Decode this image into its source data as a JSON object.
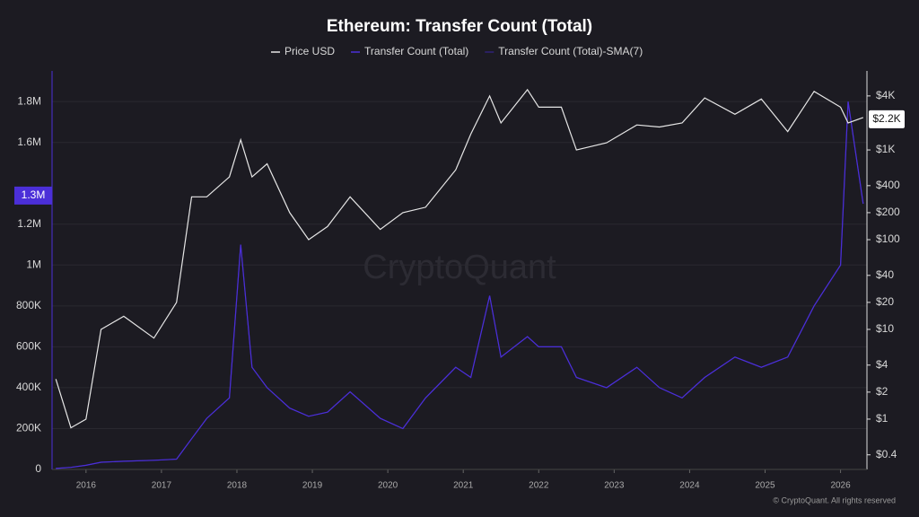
{
  "chart_data": {
    "type": "line",
    "title": "Ethereum: Transfer Count (Total)",
    "watermark": "CryptoQuant",
    "footer": "© CryptoQuant. All rights reserved",
    "x": [
      2015.6,
      2015.8,
      2016.0,
      2016.2,
      2016.5,
      2016.9,
      2017.2,
      2017.4,
      2017.6,
      2017.9,
      2018.05,
      2018.2,
      2018.4,
      2018.7,
      2018.95,
      2019.2,
      2019.5,
      2019.9,
      2020.2,
      2020.5,
      2020.9,
      2021.1,
      2021.35,
      2021.5,
      2021.85,
      2022.0,
      2022.3,
      2022.5,
      2022.9,
      2023.3,
      2023.6,
      2023.9,
      2024.2,
      2024.6,
      2024.95,
      2025.3,
      2025.65,
      2026.0,
      2026.1,
      2026.3
    ],
    "series": [
      {
        "name": "Price USD",
        "color": "#e6e6e6",
        "axis": "y2",
        "values": [
          2.8,
          0.8,
          1,
          10,
          14,
          8,
          20,
          300,
          300,
          500,
          1300,
          500,
          700,
          200,
          100,
          140,
          300,
          130,
          200,
          230,
          600,
          1500,
          4000,
          2000,
          4700,
          3000,
          3000,
          1000,
          1200,
          1900,
          1800,
          2000,
          3800,
          2500,
          3700,
          1600,
          4500,
          3000,
          2000,
          2300
        ]
      },
      {
        "name": "Transfer Count (Total)",
        "color": "#4b2fd8",
        "values": [
          5000,
          10000,
          20000,
          35000,
          40000,
          45000,
          50000,
          150000,
          250000,
          350000,
          1100000,
          500000,
          400000,
          300000,
          260000,
          280000,
          380000,
          250000,
          200000,
          350000,
          500000,
          450000,
          850000,
          550000,
          650000,
          600000,
          600000,
          450000,
          400000,
          500000,
          400000,
          350000,
          450000,
          550000,
          500000,
          550000,
          800000,
          1000000,
          1800000,
          1300000
        ]
      },
      {
        "name": "Transfer Count (Total)-SMA(7)",
        "color": "#2e2378",
        "values": [
          5000,
          10000,
          20000,
          35000,
          40000,
          45000,
          50000,
          150000,
          250000,
          350000,
          1100000,
          500000,
          400000,
          300000,
          260000,
          280000,
          380000,
          250000,
          200000,
          350000,
          500000,
          450000,
          850000,
          550000,
          650000,
          600000,
          600000,
          450000,
          400000,
          500000,
          400000,
          350000,
          450000,
          550000,
          500000,
          550000,
          800000,
          1000000,
          1800000,
          1300000
        ]
      }
    ],
    "xlim": [
      2015.55,
      2026.35
    ],
    "xticks": [
      2016,
      2017,
      2018,
      2019,
      2020,
      2021,
      2022,
      2023,
      2024,
      2025,
      2026
    ],
    "ylim": [
      0,
      1950000
    ],
    "yticks": [
      0,
      {
        "value": 200000,
        "label": "200K"
      },
      {
        "value": 400000,
        "label": "400K"
      },
      {
        "value": 600000,
        "label": "600K"
      },
      {
        "value": 800000,
        "label": "800K"
      },
      {
        "value": 1000000,
        "label": "1M"
      },
      {
        "value": 1200000,
        "label": "1.2M"
      },
      {
        "value": 1600000,
        "label": "1.6M"
      },
      {
        "value": 1800000,
        "label": "1.8M"
      }
    ],
    "y2lim": [
      0.275,
      7600
    ],
    "y2log": true,
    "y2ticks": [
      {
        "value": 0.4,
        "label": "$0.4"
      },
      {
        "value": 1,
        "label": "$1"
      },
      {
        "value": 2,
        "label": "$2"
      },
      {
        "value": 4,
        "label": "$4"
      },
      {
        "value": 10,
        "label": "$10"
      },
      {
        "value": 20,
        "label": "$20"
      },
      {
        "value": 40,
        "label": "$40"
      },
      {
        "value": 100,
        "label": "$100"
      },
      {
        "value": 200,
        "label": "$200"
      },
      {
        "value": 400,
        "label": "$400"
      },
      {
        "value": 1000,
        "label": "$1K"
      },
      {
        "value": 4000,
        "label": "$4K"
      }
    ],
    "last_value_y": {
      "value": 1340000,
      "label": "1.3M"
    },
    "last_value_y2": {
      "value": 2200,
      "label": "$2.2K"
    },
    "grid": true
  }
}
